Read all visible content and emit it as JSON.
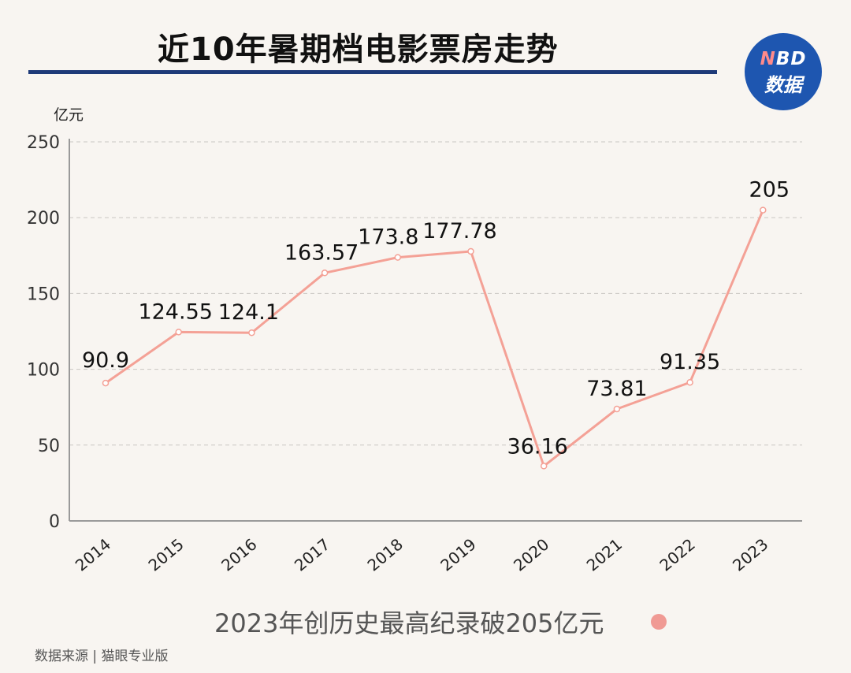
{
  "title": "近10年暑期档电影票房走势",
  "logo": {
    "line1_n": "N",
    "line1_rest": "BD",
    "line2": "数据"
  },
  "footnote": "2023年创历史最高纪录破205亿元",
  "source": "数据来源 | 猫眼专业版",
  "colors": {
    "line": "#f4a196",
    "accent": "#1e3a78",
    "logo": "#1e56b0"
  },
  "chart_data": {
    "type": "line",
    "ylabel": "亿元",
    "xlabel": "",
    "categories": [
      "2014",
      "2015",
      "2016",
      "2017",
      "2018",
      "2019",
      "2020",
      "2021",
      "2022",
      "2023"
    ],
    "values": [
      90.9,
      124.55,
      124.1,
      163.57,
      173.8,
      177.78,
      36.16,
      73.81,
      91.35,
      205
    ],
    "value_labels": [
      "90.9",
      "124.55",
      "124.1",
      "163.57",
      "173.8",
      "177.78",
      "36.16",
      "73.81",
      "91.35",
      "205"
    ],
    "ylim": [
      0,
      250
    ],
    "yticks": [
      0,
      50,
      100,
      150,
      200,
      250
    ],
    "grid": true,
    "grid_style": "dashed"
  }
}
